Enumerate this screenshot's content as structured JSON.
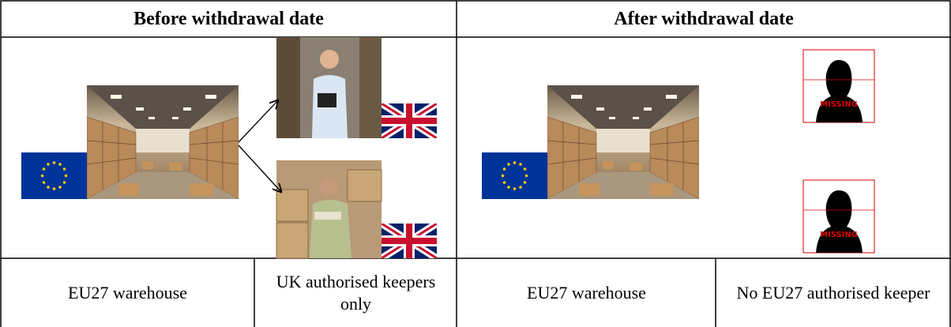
{
  "header": {
    "before": "Before withdrawal date",
    "after": "After withdrawal date"
  },
  "captions": [
    "EU27 warehouse",
    "UK authorised keepers only",
    "EU27 warehouse",
    "No EU27 authorised keeper"
  ],
  "missing_labels": [
    "MISSING",
    "MISSING"
  ]
}
